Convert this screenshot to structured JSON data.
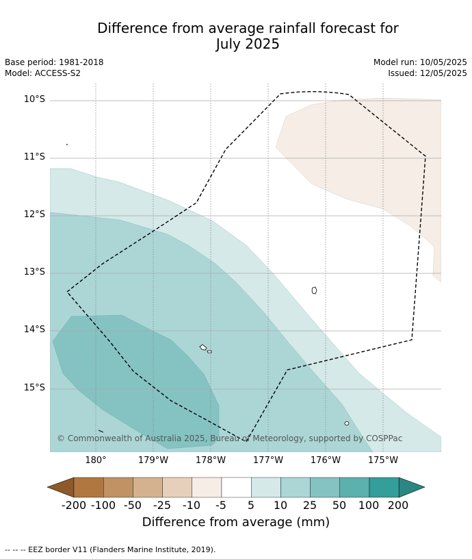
{
  "title_line1": "Difference from average rainfall forecast for",
  "title_line2": "July 2025",
  "base_period": "Base period: 1981-2018",
  "model": "Model: ACCESS-S2",
  "model_run": "Model run: 10/05/2025",
  "issued": "Issued: 12/05/2025",
  "lat_labels": [
    "10°S",
    "11°S",
    "12°S",
    "13°S",
    "14°S",
    "15°S"
  ],
  "lon_labels": [
    "180°",
    "179°W",
    "178°W",
    "177°W",
    "176°W",
    "175°W"
  ],
  "credit": "© Commonwealth of Australia 2025, Bureau of Meteorology, supported by COSPPac",
  "colorbar": {
    "label": "Difference from average (mm)",
    "ticks": [
      "-200",
      "-100",
      "-50",
      "-25",
      "-10",
      "-5",
      "5",
      "10",
      "25",
      "50",
      "100",
      "200"
    ],
    "colors": [
      "#8e5a2a",
      "#b07840",
      "#c09264",
      "#d4b290",
      "#e6d0bc",
      "#f5ede6",
      "#ffffff",
      "#d4e9e8",
      "#acd6d6",
      "#84c3c2",
      "#5cb0ae",
      "#339e9a",
      "#2a8784"
    ]
  },
  "footer": "--  --  -- EEZ border V11 (Flanders Marine Institute, 2019)."
}
